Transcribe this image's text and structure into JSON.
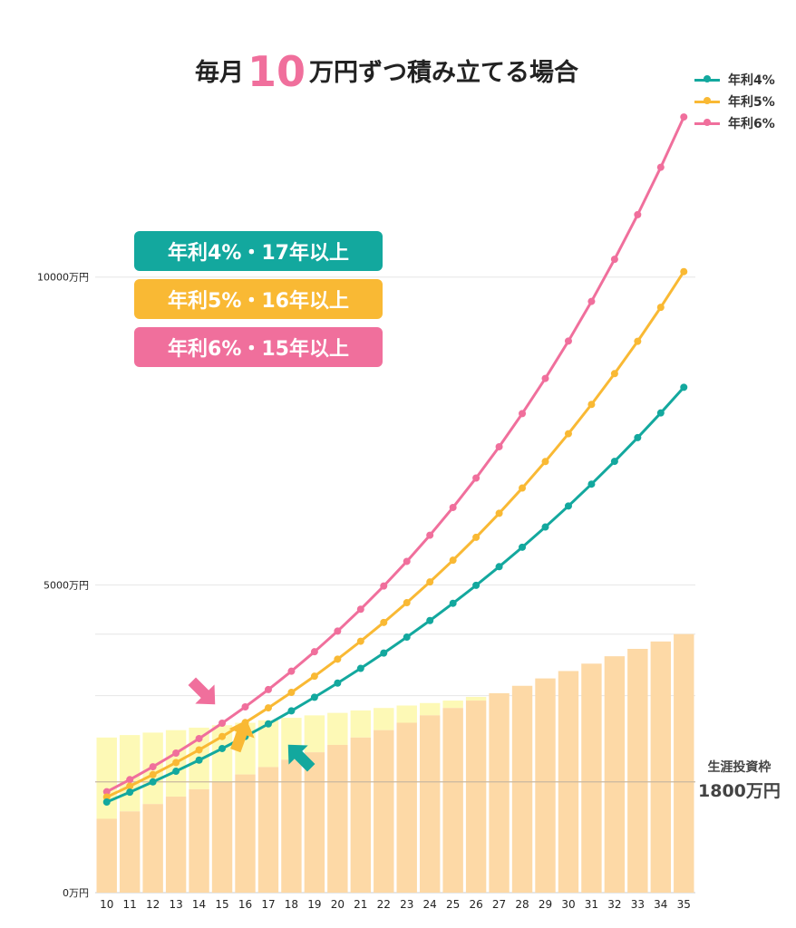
{
  "title": {
    "prefix": "毎月",
    "number": "10",
    "suffix": "万円ずつ積み立てる場合"
  },
  "legend": [
    {
      "label": "年利4%",
      "color": "#13a89e"
    },
    {
      "label": "年利5%",
      "color": "#f9b934"
    },
    {
      "label": "年利6%",
      "color": "#f06f9c"
    }
  ],
  "badges": [
    {
      "label": "年利4%・17年以上",
      "color": "#13a89e"
    },
    {
      "label": "年利5%・16年以上",
      "color": "#f9b934"
    },
    {
      "label": "年利6%・15年以上",
      "color": "#f06f9c"
    }
  ],
  "limit": {
    "label1": "生涯投資枠",
    "label2": "1800万円",
    "value": 1800
  },
  "chart_data": {
    "type": "bar+line",
    "x": [
      10,
      11,
      12,
      13,
      14,
      15,
      16,
      17,
      18,
      19,
      20,
      21,
      22,
      23,
      24,
      25,
      26,
      27,
      28,
      29,
      30,
      31,
      32,
      33,
      34,
      35
    ],
    "ylim": [
      0,
      14500
    ],
    "yticks": [
      0,
      5000,
      10000
    ],
    "ytick_labels": [
      "0万円",
      "5000万円",
      "10000万円"
    ],
    "bars_principal": [
      1200,
      1320,
      1440,
      1560,
      1680,
      1800,
      1920,
      2040,
      2160,
      2280,
      2400,
      2520,
      2640,
      2760,
      2880,
      3000,
      3120,
      3240,
      3360,
      3480,
      3600,
      3720,
      3840,
      3960,
      4080,
      4200
    ],
    "bars_yellow_top": [
      2520,
      2560,
      2600,
      2640,
      2680,
      2720,
      2760,
      2800,
      2840,
      2880,
      2920,
      2960,
      3000,
      3040,
      3080,
      3120,
      3180,
      3240,
      3300,
      3400,
      3500,
      3600,
      3720,
      3840,
      3960,
      4200
    ],
    "bar_colors": {
      "principal": "#fdd9a6",
      "yellow": "#fdf9b6"
    },
    "series": [
      {
        "name": "年利4%",
        "color": "#13a89e",
        "values": [
          1472,
          1632,
          1799,
          1972,
          2153,
          2341,
          2537,
          2741,
          2953,
          3174,
          3404,
          3643,
          3892,
          4151,
          4420,
          4700,
          4992,
          5295,
          5611,
          5939,
          6281,
          6636,
          7006,
          7391,
          7792,
          8209
        ]
      },
      {
        "name": "年利5%",
        "color": "#f9b934",
        "values": [
          1553,
          1730,
          1917,
          2113,
          2319,
          2536,
          2763,
          3002,
          3253,
          3516,
          3793,
          4084,
          4389,
          4710,
          5047,
          5400,
          5772,
          6162,
          6572,
          7003,
          7455,
          7931,
          8431,
          8956,
          9508,
          10088
        ]
      },
      {
        "name": "年利6%",
        "color": "#f06f9c",
        "values": [
          1639,
          1836,
          2045,
          2267,
          2503,
          2753,
          3018,
          3299,
          3597,
          3913,
          4248,
          4604,
          4981,
          5381,
          5806,
          6257,
          6735,
          7243,
          7782,
          8353,
          8960,
          9604,
          10288,
          11013,
          11783,
          12600
        ]
      }
    ]
  }
}
